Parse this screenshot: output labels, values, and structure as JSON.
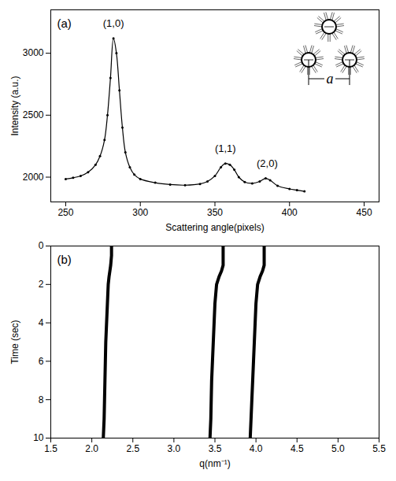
{
  "chart_data": [
    {
      "type": "line",
      "panel_label": "(a)",
      "x_label": "Scattering angle(pixels)",
      "y_label": "Intensity (a.u.)",
      "x": [
        250,
        255,
        260,
        265,
        270,
        273,
        276,
        278,
        280,
        282,
        284,
        286,
        288,
        290,
        293,
        296,
        300,
        310,
        320,
        330,
        340,
        345,
        350,
        354,
        357,
        360,
        363,
        366,
        370,
        375,
        380,
        384,
        387,
        392,
        400,
        405,
        410
      ],
      "values": [
        1985,
        1995,
        2010,
        2040,
        2100,
        2170,
        2300,
        2500,
        2800,
        3120,
        3000,
        2700,
        2400,
        2200,
        2080,
        2020,
        1985,
        1955,
        1940,
        1935,
        1945,
        1965,
        2010,
        2080,
        2110,
        2100,
        2060,
        2000,
        1960,
        1950,
        1965,
        1990,
        1975,
        1930,
        1905,
        1895,
        1885
      ],
      "color": "#000000",
      "marker": "dot",
      "xlim": [
        240,
        460
      ],
      "xticks": [
        250,
        300,
        350,
        400,
        450
      ],
      "ylim": [
        1800,
        3350
      ],
      "yticks": [
        2000,
        2500,
        3000
      ],
      "annotations": [
        {
          "text": "(1,0)",
          "x": 282,
          "y": 3240
        },
        {
          "text": "(1,1)",
          "x": 357,
          "y": 2230
        },
        {
          "text": "(2,0)",
          "x": 385,
          "y": 2110
        }
      ],
      "inset_label": "a"
    },
    {
      "type": "line",
      "panel_label": "(b)",
      "x_label": "q(nm⁻¹)",
      "y_label": "Time (sec)",
      "y": [
        0,
        0.5,
        1,
        1.3,
        1.6,
        2,
        3,
        4,
        5,
        6,
        7,
        8,
        9,
        10
      ],
      "series": [
        {
          "color": "#000000",
          "values": [
            2.24,
            2.24,
            2.23,
            2.22,
            2.21,
            2.2,
            2.19,
            2.18,
            2.17,
            2.165,
            2.16,
            2.155,
            2.15,
            2.14
          ]
        },
        {
          "color": "#000000",
          "values": [
            3.6,
            3.6,
            3.6,
            3.58,
            3.55,
            3.52,
            3.5,
            3.49,
            3.48,
            3.47,
            3.46,
            3.455,
            3.45,
            3.44
          ]
        },
        {
          "color": "#000000",
          "values": [
            4.1,
            4.1,
            4.1,
            4.08,
            4.05,
            4.02,
            4.0,
            3.99,
            3.98,
            3.97,
            3.96,
            3.95,
            3.94,
            3.93
          ]
        }
      ],
      "xlim": [
        1.5,
        5.5
      ],
      "xticks": [
        {
          "value": 1.5,
          "label": "1.5"
        },
        {
          "value": 2,
          "label": "2.0"
        },
        {
          "value": 2.5,
          "label": "2.5"
        },
        {
          "value": 3,
          "label": "3.0"
        },
        {
          "value": 3.5,
          "label": "3.5"
        },
        {
          "value": 4,
          "label": "4.0"
        },
        {
          "value": 4.5,
          "label": "4.5"
        },
        {
          "value": 5,
          "label": "5.0"
        },
        {
          "value": 5.5,
          "label": "5.5"
        }
      ],
      "ylim": [
        10,
        0
      ],
      "yticks": [
        0,
        2,
        4,
        6,
        8,
        10
      ]
    }
  ]
}
